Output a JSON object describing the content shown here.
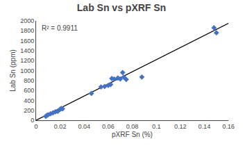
{
  "chart_data": {
    "type": "scatter",
    "title": "Lab Sn vs pXRF Sn",
    "xlabel": "pXRF Sn (%)",
    "ylabel": "Lab Sn (ppm)",
    "annotation": "R² = 0.9911",
    "series": [
      {
        "type": "scatter",
        "marker": "diamond",
        "color": "#4472C4",
        "x": [
          0.008,
          0.009,
          0.01,
          0.012,
          0.014,
          0.016,
          0.018,
          0.02,
          0.021,
          0.022,
          0.046,
          0.054,
          0.057,
          0.06,
          0.062,
          0.063,
          0.065,
          0.068,
          0.07,
          0.072,
          0.073,
          0.075,
          0.088,
          0.148,
          0.15
        ],
        "values": [
          80,
          100,
          110,
          130,
          150,
          170,
          180,
          220,
          240,
          230,
          540,
          670,
          680,
          700,
          720,
          840,
          830,
          850,
          830,
          960,
          870,
          820,
          870,
          1860,
          1760
        ]
      },
      {
        "type": "line",
        "line_style": "solid",
        "color": "#000000",
        "x": [
          0.0,
          0.16
        ],
        "values": [
          0.0,
          1950
        ]
      }
    ],
    "xlim": [
      0,
      0.16
    ],
    "ylim": [
      0,
      2000
    ],
    "xticks": [
      0,
      0.02,
      0.04,
      0.06,
      0.08,
      0.1,
      0.12,
      0.14,
      0.16
    ],
    "yticks": [
      0,
      200,
      400,
      600,
      800,
      1000,
      1200,
      1400,
      1600,
      1800,
      2000
    ],
    "grid": false
  }
}
